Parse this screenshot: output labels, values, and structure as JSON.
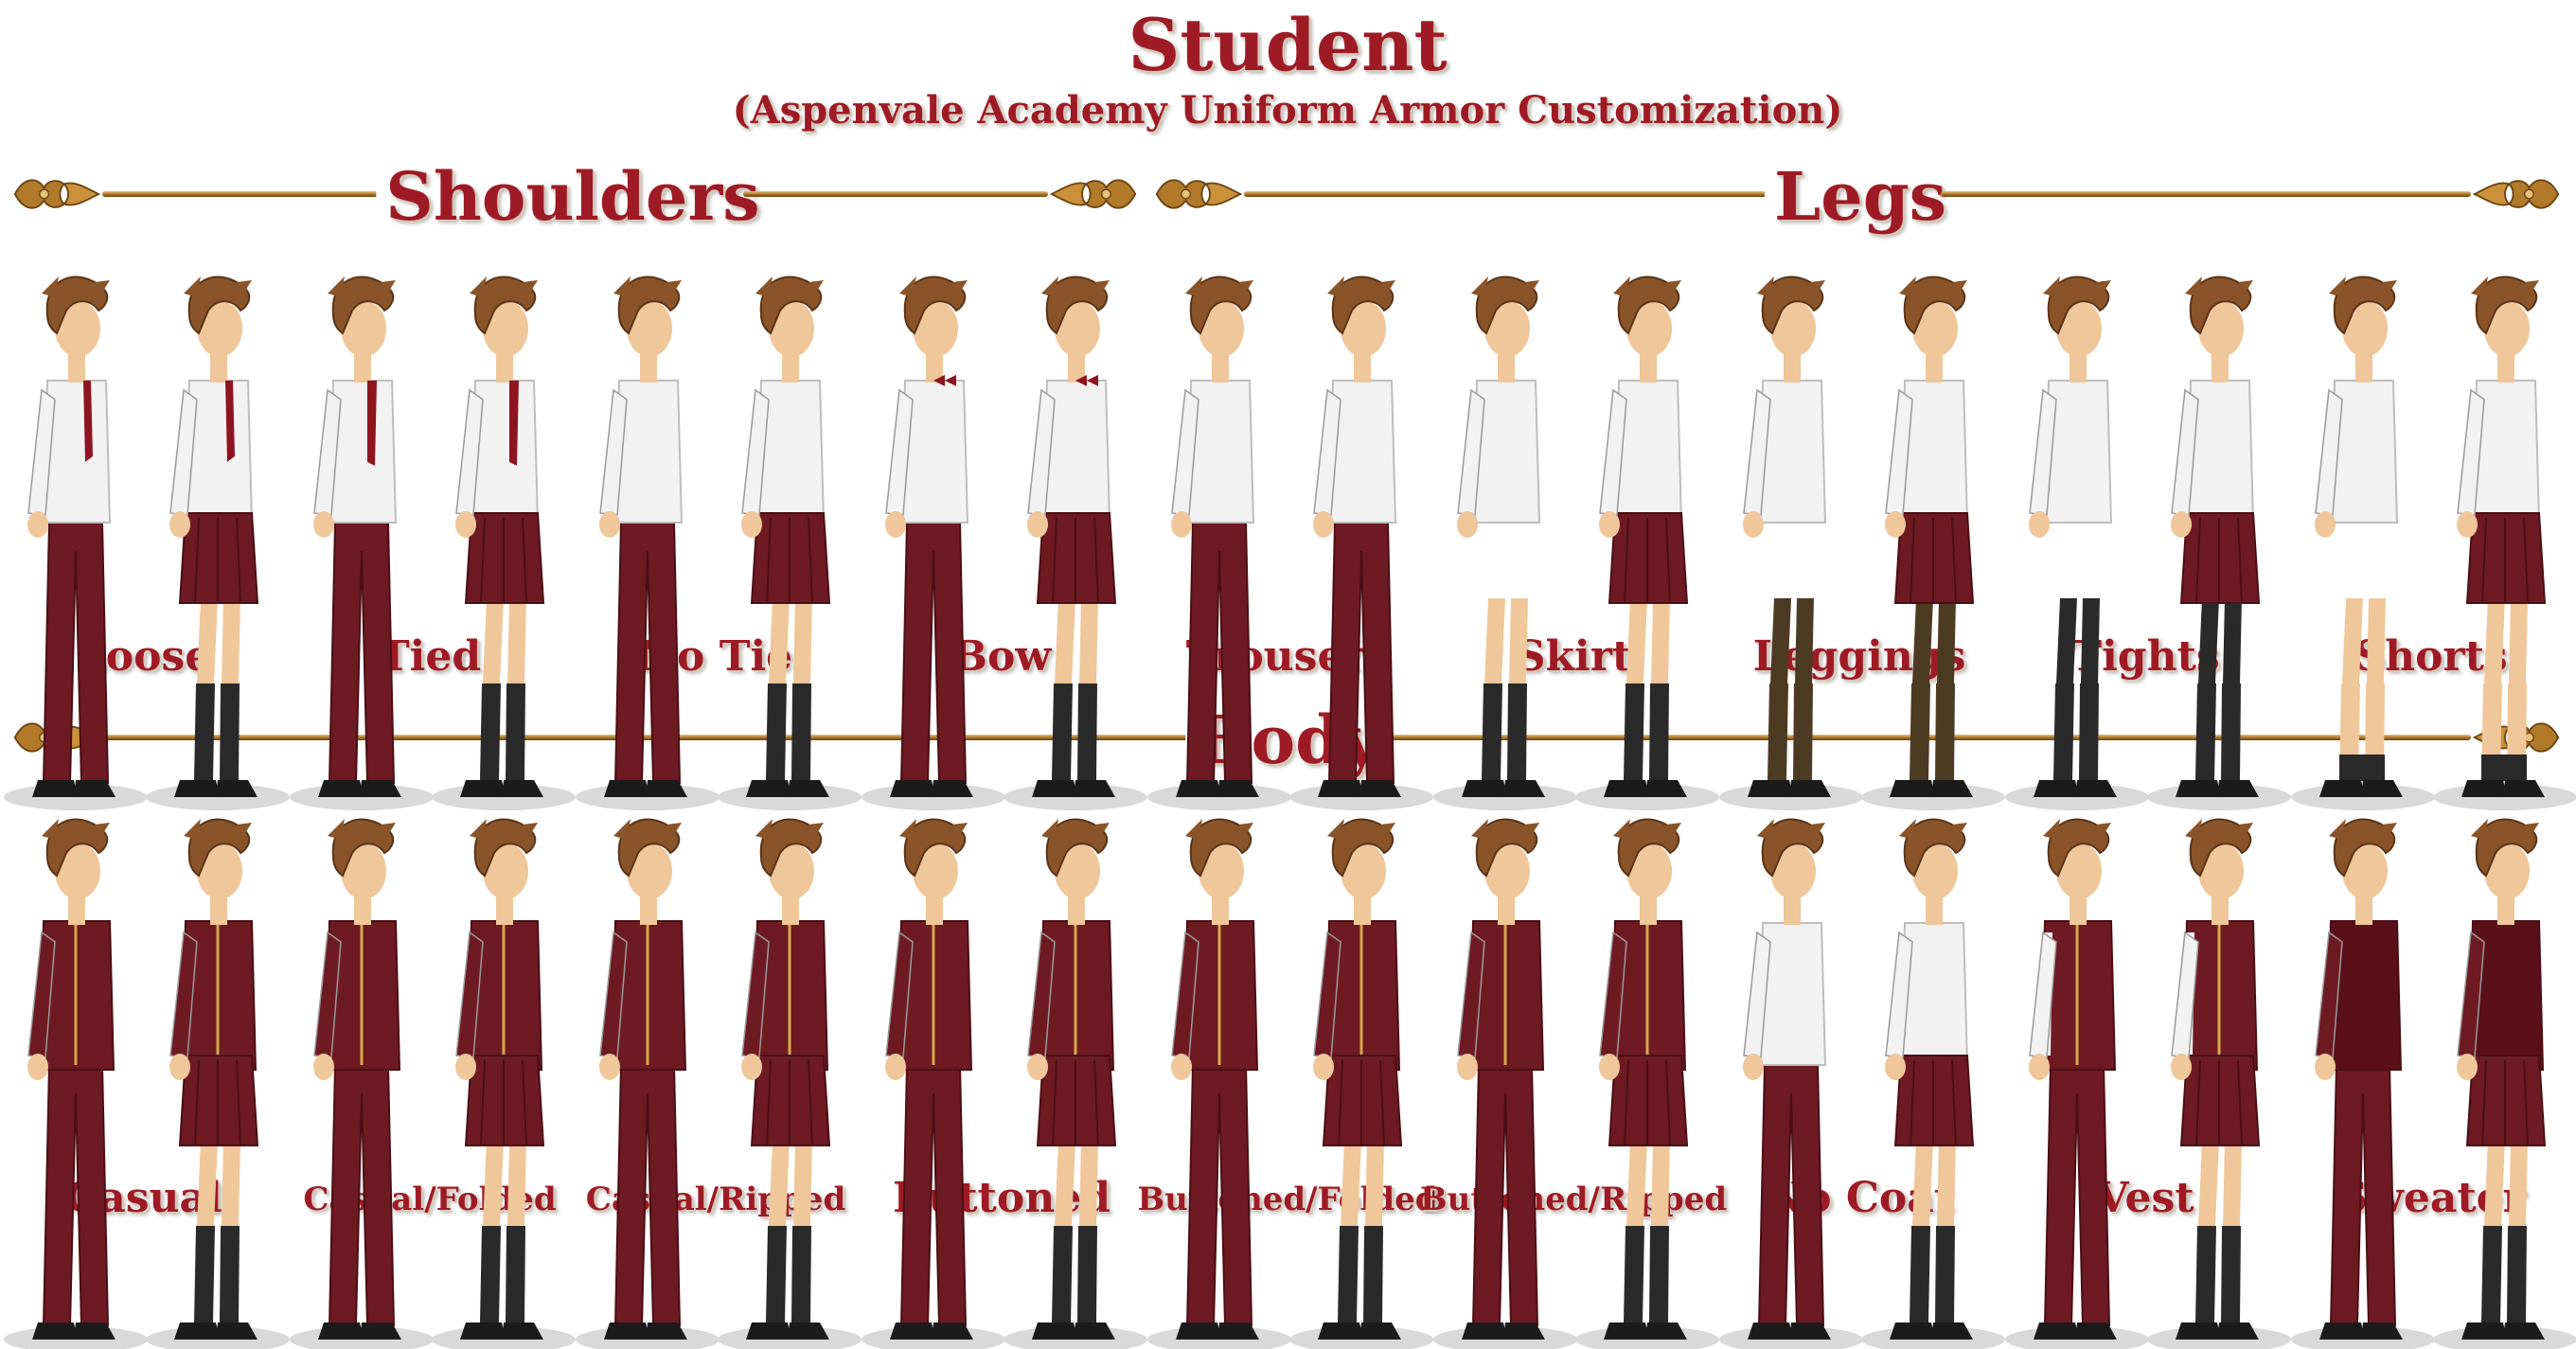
{
  "title": "Student",
  "subtitle": "(Aspenvale Academy Uniform Armor Customization)",
  "colors": {
    "label_text": "#9e1b26",
    "gold_ornament": "#b07a2a",
    "uniform_maroon": "#6e1a22",
    "shirt_white": "#f2f2f2",
    "hair_brown": "#8a5428",
    "skin": "#efc79a"
  },
  "sections": {
    "shoulders": {
      "title": "Shoulders",
      "options": [
        {
          "label": "Loose",
          "variant": "loose"
        },
        {
          "label": "Tied",
          "variant": "tied"
        },
        {
          "label": "No Tie",
          "variant": "none"
        },
        {
          "label": "Bow",
          "variant": "bow"
        }
      ]
    },
    "legs": {
      "title": "Legs",
      "options": [
        {
          "label": "Trousers",
          "variant": "trousers"
        },
        {
          "label": "Skirt",
          "variant": "skirt"
        },
        {
          "label": "Leggings",
          "variant": "leggings"
        },
        {
          "label": "Tights",
          "variant": "tights"
        },
        {
          "label": "Shorts",
          "variant": "shorts"
        }
      ]
    },
    "body": {
      "title": "Body",
      "options": [
        {
          "label": "Casual",
          "variant": "casual"
        },
        {
          "label": "Casual/Folded",
          "variant": "folded"
        },
        {
          "label": "Casual/Ripped",
          "variant": "ripped"
        },
        {
          "label": "Buttoned",
          "variant": "buttoned"
        },
        {
          "label": "Buttoned/Folded",
          "variant": "buttoned-folded"
        },
        {
          "label": "Buttoned/Ripped",
          "variant": "buttoned-ripped"
        },
        {
          "label": "No Coat",
          "variant": "nocoat"
        },
        {
          "label": "Vest",
          "variant": "vest"
        },
        {
          "label": "Sweater",
          "variant": "sweater"
        }
      ]
    }
  }
}
